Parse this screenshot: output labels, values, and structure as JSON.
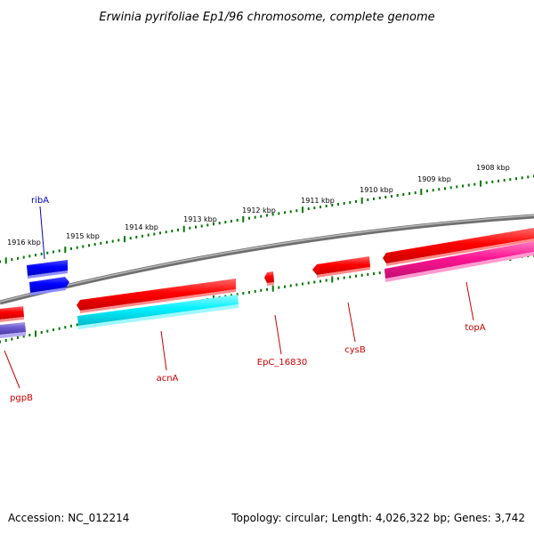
{
  "title": "Erwinia pyrifoliae Ep1/96 chromosome, complete genome",
  "footer": {
    "accession": "Accession: NC_012214",
    "summary": "Topology: circular; Length: 4,026,322 bp; Genes: 3,742"
  },
  "colors": {
    "backbone": "#808080",
    "ticks": "#007700",
    "gene_red": "#ff0000",
    "gene_blue": "#0000ff",
    "gene_cyan": "#00e5ee",
    "gene_pink": "#e0208c",
    "gene_purple": "#6a5acd",
    "label_red": "#cc0000",
    "label_blue": "#0000cc"
  },
  "kbp_labels": [
    "1916 kbp",
    "1915 kbp",
    "1914 kbp",
    "1913 kbp",
    "1912 kbp",
    "1911 kbp",
    "1910 kbp",
    "1909 kbp",
    "1908 kbp"
  ],
  "genes": [
    {
      "name": "ribA",
      "color": "gene_blue",
      "label_color": "label_blue"
    },
    {
      "name": "pgpB",
      "color": "gene_purple",
      "label_color": "label_red"
    },
    {
      "name": "acnA",
      "color": "gene_cyan",
      "label_color": "label_red"
    },
    {
      "name": "EpC_16830",
      "color": "gene_red",
      "label_color": "label_red"
    },
    {
      "name": "cysB",
      "color": "gene_red",
      "label_color": "label_red"
    },
    {
      "name": "topA",
      "color": "gene_pink",
      "label_color": "label_red"
    }
  ]
}
